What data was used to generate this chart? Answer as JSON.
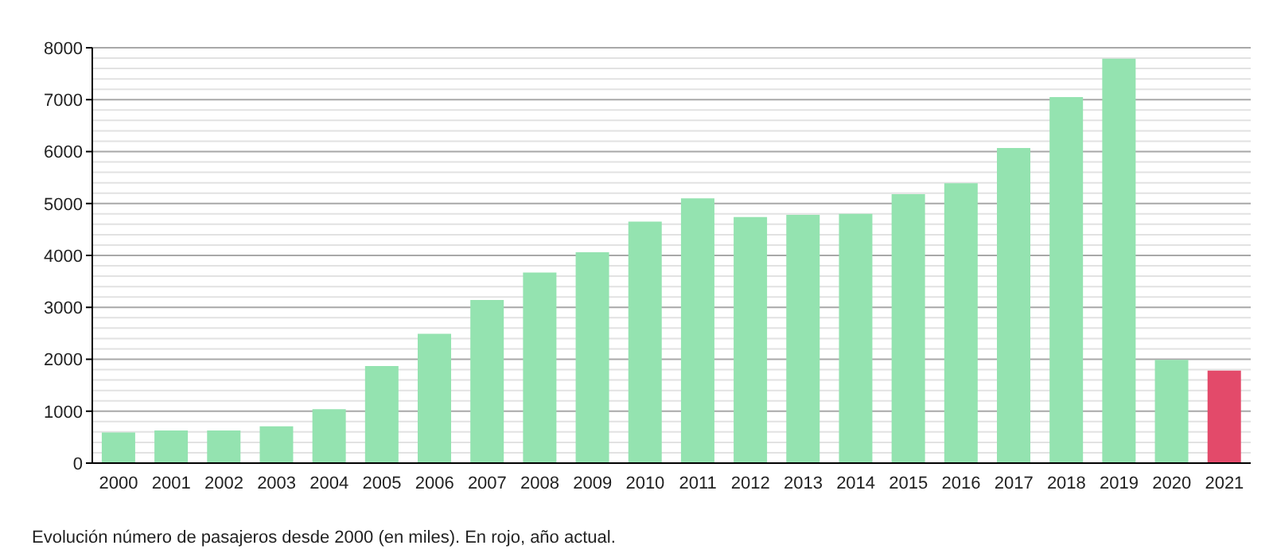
{
  "chart_data": {
    "type": "bar",
    "categories": [
      "2000",
      "2001",
      "2002",
      "2003",
      "2004",
      "2005",
      "2006",
      "2007",
      "2008",
      "2009",
      "2010",
      "2011",
      "2012",
      "2013",
      "2014",
      "2015",
      "2016",
      "2017",
      "2018",
      "2019",
      "2020",
      "2021"
    ],
    "values": [
      590,
      630,
      630,
      710,
      1040,
      1870,
      2490,
      3140,
      3670,
      4060,
      4650,
      5100,
      4740,
      4780,
      4800,
      5180,
      5390,
      6070,
      7050,
      7790,
      1990,
      1780
    ],
    "colors": [
      "#94e3b0",
      "#94e3b0",
      "#94e3b0",
      "#94e3b0",
      "#94e3b0",
      "#94e3b0",
      "#94e3b0",
      "#94e3b0",
      "#94e3b0",
      "#94e3b0",
      "#94e3b0",
      "#94e3b0",
      "#94e3b0",
      "#94e3b0",
      "#94e3b0",
      "#94e3b0",
      "#94e3b0",
      "#94e3b0",
      "#94e3b0",
      "#94e3b0",
      "#94e3b0",
      "#e34a6a"
    ],
    "ylim": [
      0,
      8000
    ],
    "yticks": [
      0,
      1000,
      2000,
      3000,
      4000,
      5000,
      6000,
      7000,
      8000
    ],
    "grid": "y",
    "annotations": [
      "Evolución número de pasajeros desde 2000 (en miles). En rojo, año actual."
    ]
  }
}
